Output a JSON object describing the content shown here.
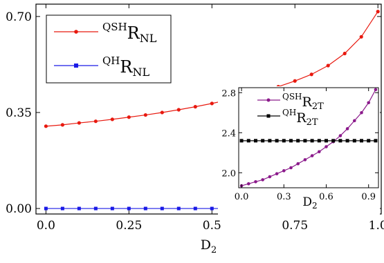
{
  "chart_data": [
    {
      "type": "line",
      "xlabel_main": "D",
      "xlabel_sub": "2",
      "ylabel": "",
      "xlim": [
        -0.03,
        1.01
      ],
      "ylim": [
        -0.02,
        0.745
      ],
      "xticks": [
        "0.0",
        "0.25",
        "0.5",
        "0.75",
        "1.0"
      ],
      "xtick_values": [
        0,
        0.25,
        0.5,
        0.75,
        1.0
      ],
      "yticks": [
        "0.00",
        "0.35",
        "0.70"
      ],
      "ytick_values": [
        0,
        0.35,
        0.7
      ],
      "legend_position": "top-left",
      "x": [
        0,
        0.05,
        0.1,
        0.15,
        0.2,
        0.25,
        0.3,
        0.35,
        0.4,
        0.45,
        0.5,
        0.55,
        0.6,
        0.65,
        0.7,
        0.75,
        0.8,
        0.85,
        0.9,
        0.95,
        1.0
      ],
      "series": [
        {
          "name_sup": "QSH",
          "name_main": "R",
          "name_sub": "NL",
          "color": "#e8190f",
          "marker": "circle",
          "values": [
            0.3,
            0.305,
            0.312,
            0.318,
            0.325,
            0.333,
            0.341,
            0.35,
            0.36,
            0.371,
            0.383,
            0.396,
            0.41,
            0.426,
            0.444,
            0.465,
            0.489,
            0.521,
            0.565,
            0.626,
            0.718
          ]
        },
        {
          "name_sup": "QH",
          "name_main": "R",
          "name_sub": "NL",
          "color": "#1a1ae6",
          "marker": "square",
          "values": [
            0,
            0,
            0,
            0,
            0,
            0,
            0,
            0,
            0,
            0,
            0,
            0,
            0,
            0,
            0,
            0,
            0,
            0,
            0,
            0,
            0
          ]
        }
      ]
    },
    {
      "type": "line",
      "inset": true,
      "xlabel_main": "D",
      "xlabel_sub": "2",
      "xlim": [
        -0.02,
        0.97
      ],
      "ylim": [
        1.85,
        2.85
      ],
      "xticks": [
        "0.0",
        "0.3",
        "0.6",
        "0.9"
      ],
      "xtick_values": [
        0,
        0.3,
        0.6,
        0.9
      ],
      "yticks": [
        "2.0",
        "2.4",
        "2.8"
      ],
      "ytick_values": [
        2.0,
        2.4,
        2.8
      ],
      "legend_position": "top-left",
      "x": [
        0,
        0.05,
        0.1,
        0.15,
        0.2,
        0.25,
        0.3,
        0.35,
        0.4,
        0.45,
        0.5,
        0.55,
        0.6,
        0.65,
        0.7,
        0.75,
        0.8,
        0.85,
        0.9,
        0.95
      ],
      "series": [
        {
          "name_sup": "QSH",
          "name_main": "R",
          "name_sub": "2T",
          "color": "#8b1a8b",
          "marker": "circle",
          "values": [
            1.87,
            1.89,
            1.91,
            1.93,
            1.96,
            1.99,
            2.02,
            2.05,
            2.09,
            2.13,
            2.17,
            2.21,
            2.26,
            2.31,
            2.37,
            2.44,
            2.52,
            2.6,
            2.7,
            2.83
          ]
        },
        {
          "name_sup": "QH",
          "name_main": "R",
          "name_sub": "2T",
          "color": "#000000",
          "marker": "square",
          "values": [
            2.32,
            2.32,
            2.32,
            2.32,
            2.32,
            2.32,
            2.32,
            2.32,
            2.32,
            2.32,
            2.32,
            2.32,
            2.32,
            2.32,
            2.32,
            2.32,
            2.32,
            2.32,
            2.32,
            2.32
          ]
        }
      ]
    }
  ]
}
